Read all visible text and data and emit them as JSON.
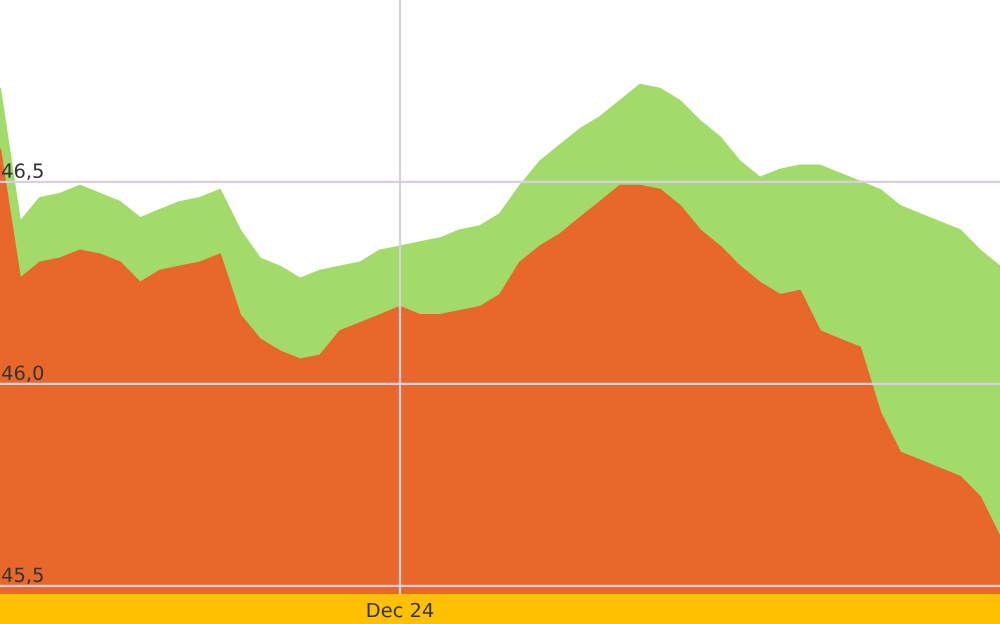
{
  "chart_data": {
    "type": "area",
    "categories": [
      null,
      null,
      null,
      null,
      null,
      null,
      null,
      null,
      null,
      null,
      null,
      null,
      null,
      null,
      null,
      null,
      null,
      null,
      null,
      null,
      "Dec 24",
      null,
      null,
      null,
      null,
      null,
      null,
      null,
      null,
      null,
      null,
      null,
      null,
      null,
      null,
      null,
      null,
      null,
      null,
      null,
      null,
      null,
      null,
      null,
      null,
      null,
      null,
      null,
      null,
      null,
      null
    ],
    "ylim": [
      45.48,
      46.95
    ],
    "yticks": [
      {
        "value": 45.5,
        "label": "45,5"
      },
      {
        "value": 46.0,
        "label": "46,0"
      },
      {
        "value": 46.5,
        "label": "46,5"
      }
    ],
    "grid": true,
    "series": [
      {
        "color": "#a3db6b",
        "values": [
          46.73,
          46.4,
          46.46,
          46.47,
          46.49,
          46.47,
          46.45,
          46.41,
          46.43,
          46.45,
          46.46,
          46.48,
          46.38,
          46.31,
          46.29,
          46.26,
          46.28,
          46.29,
          46.3,
          46.33,
          46.34,
          46.35,
          46.36,
          46.38,
          46.39,
          46.42,
          46.49,
          46.55,
          46.59,
          46.63,
          46.66,
          46.7,
          46.74,
          46.73,
          46.7,
          46.65,
          46.61,
          46.55,
          46.51,
          46.53,
          46.54,
          46.54,
          46.52,
          46.5,
          46.48,
          46.44,
          46.42,
          46.4,
          46.38,
          46.33,
          46.29
        ]
      },
      {
        "color": "#e8672a",
        "values": [
          46.58,
          46.26,
          46.3,
          46.31,
          46.33,
          46.32,
          46.3,
          46.25,
          46.28,
          46.29,
          46.3,
          46.32,
          46.17,
          46.11,
          46.08,
          46.06,
          46.07,
          46.13,
          46.15,
          46.17,
          46.19,
          46.17,
          46.17,
          46.18,
          46.19,
          46.22,
          46.3,
          46.34,
          46.37,
          46.41,
          46.45,
          46.49,
          46.49,
          46.48,
          46.44,
          46.38,
          46.34,
          46.29,
          46.25,
          46.22,
          46.23,
          46.13,
          46.11,
          46.09,
          45.93,
          45.83,
          45.81,
          45.79,
          45.77,
          45.72,
          45.62
        ]
      }
    ]
  }
}
